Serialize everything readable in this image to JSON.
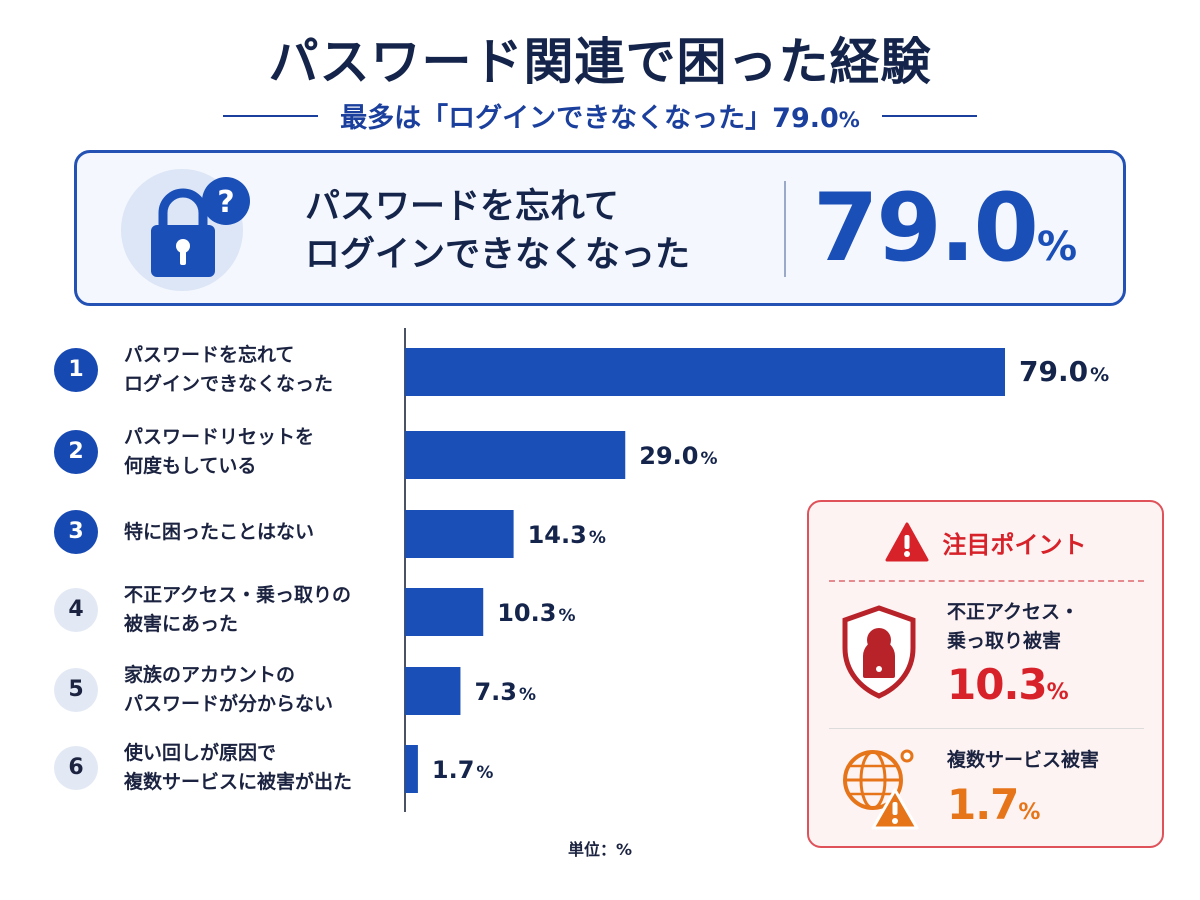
{
  "title": "パスワード関連で困った経験",
  "subtitle": {
    "text": "最多は「ログインできなくなった」79.0",
    "pct": "%"
  },
  "hero": {
    "icon": "lock-question-icon",
    "line1": "パスワードを忘れて",
    "line2": "ログインできなくなった",
    "value": "79.0",
    "unit": "%"
  },
  "chart_data": {
    "type": "bar",
    "orientation": "horizontal",
    "title": "パスワード関連で困った経験",
    "unit_label": "単位：%",
    "xlim": [
      0,
      100
    ],
    "categories": [
      {
        "rank": "1",
        "lines": [
          "パスワードを忘れて",
          "ログインできなくなった"
        ]
      },
      {
        "rank": "2",
        "lines": [
          "パスワードリセットを",
          "何度もしている"
        ]
      },
      {
        "rank": "3",
        "lines": [
          "特に困ったことはない"
        ]
      },
      {
        "rank": "4",
        "lines": [
          "不正アクセス・乗っ取りの",
          "被害にあった"
        ]
      },
      {
        "rank": "5",
        "lines": [
          "家族のアカウントの",
          "パスワードが分からない"
        ]
      },
      {
        "rank": "6",
        "lines": [
          "使い回しが原因で",
          "複数サービスに被害が出た"
        ]
      }
    ],
    "values": [
      79.0,
      29.0,
      14.3,
      10.3,
      7.3,
      1.7
    ],
    "value_labels": [
      "79.0",
      "29.0",
      "14.3",
      "10.3",
      "7.3",
      "1.7"
    ],
    "bar_color": "#1a4fb8"
  },
  "unit_note": "単位：%",
  "callout": {
    "title": "注目ポイント",
    "icon": "warning-icon",
    "items": [
      {
        "icon": "hacker-shield-icon",
        "lines": [
          "不正アクセス・",
          "乗っ取り被害"
        ],
        "value": "10.3",
        "unit": "%",
        "color": "#d8222a"
      },
      {
        "icon": "globe-warning-icon",
        "lines": [
          "複数サービス被害"
        ],
        "value": "1.7",
        "unit": "%",
        "color": "#e6751a"
      }
    ]
  },
  "colors": {
    "navy": "#14244a",
    "accent": "#1a4fb8",
    "alert_red": "#d8222a",
    "alert_orange": "#e6751a"
  }
}
